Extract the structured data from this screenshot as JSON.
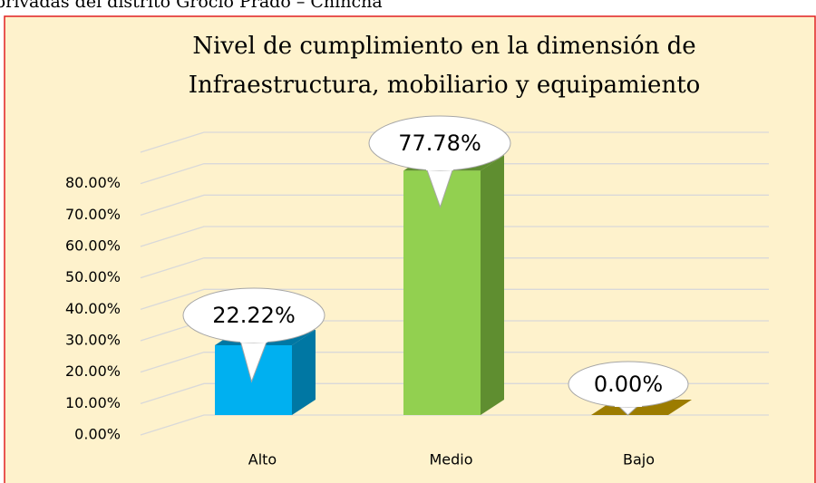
{
  "caption": "privadas del distrito Grocio Prado – Chincha",
  "chart_data": {
    "type": "bar3d",
    "title": [
      "Nivel de cumplimiento en la dimensión de",
      "Infraestructura, mobiliario y equipamiento"
    ],
    "categories": [
      "Alto",
      "Medio",
      "Bajo"
    ],
    "values": [
      22.22,
      77.78,
      0
    ],
    "value_labels": [
      "22.22%",
      "77.78%",
      "0.00%"
    ],
    "colors": [
      "#00B0F0",
      "#92D050",
      "#C9A000"
    ],
    "side_colors": [
      "#0077A3",
      "#5F8E30",
      "#9C7C00"
    ],
    "ylim": [
      0,
      90
    ],
    "yticks": [
      {
        "value": 0,
        "label": "0.00%"
      },
      {
        "value": 10,
        "label": "10.00%"
      },
      {
        "value": 20,
        "label": "20.00%"
      },
      {
        "value": 30,
        "label": "30.00%"
      },
      {
        "value": 40,
        "label": "40.00%"
      },
      {
        "value": 50,
        "label": "50.00%"
      },
      {
        "value": 60,
        "label": "60.00%"
      },
      {
        "value": 70,
        "label": "70.00%"
      },
      {
        "value": 80,
        "label": "80.00%"
      }
    ],
    "grid": true
  }
}
